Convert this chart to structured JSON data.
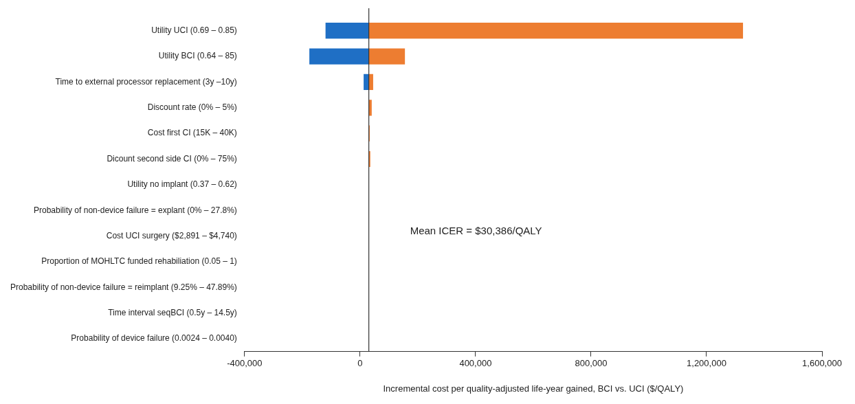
{
  "chart_data": {
    "type": "bar",
    "orientation": "horizontal",
    "xlabel": "Incremental cost per quality-adjusted life-year gained, BCI vs. UCI ($/QALY)",
    "categories": [
      "Utility UCI (0.69 – 0.85)",
      "Utility BCI (0.64 – 85)",
      "Time to external processor replacement (3y –10y)",
      "Discount rate (0% – 5%)",
      "Cost first CI (15K – 40K)",
      "Dicount second side CI (0% – 75%)",
      "Utility no implant (0.37 – 0.62)",
      "Probability of non-device failure = explant (0% – 27.8%)",
      "Cost UCI surgery ($2,891 – $4,740)",
      "Proportion of MOHLTC funded rehabiliation (0.05 – 1)",
      "Probability of non-device failure = reimplant (9.25% – 47.89%)",
      "Time interval seqBCI (0.5y – 14.5y)",
      "Probability of device failure (0.0024 – 0.0040)"
    ],
    "series": [
      {
        "color": "#1f6fc5",
        "base": [
          30386,
          30386,
          30386,
          null,
          null,
          null,
          null,
          null,
          null,
          null,
          null,
          null,
          null
        ],
        "values": [
          -150000,
          -206000,
          -18000,
          null,
          null,
          null,
          null,
          null,
          null,
          null,
          null,
          null,
          null
        ]
      },
      {
        "color": "#ed7d31",
        "base": [
          30386,
          30386,
          30386,
          30386,
          30386,
          30386,
          null,
          null,
          null,
          null,
          null,
          null,
          null
        ],
        "values": [
          1296000,
          125000,
          15000,
          10000,
          3000,
          5000,
          null,
          null,
          null,
          null,
          null,
          null,
          null
        ]
      }
    ],
    "xlim": [
      -400000,
      1600000
    ],
    "xticks": [
      {
        "value": -400000,
        "label": "-400,000"
      },
      0,
      {
        "value": 400000,
        "label": "400,000"
      },
      {
        "value": 800000,
        "label": "800,000"
      },
      {
        "value": 1200000,
        "label": "1,200,000"
      },
      {
        "value": 1600000,
        "label": "1,600,000"
      }
    ],
    "ref_lines": [
      {
        "axis": "x",
        "value": 30386,
        "color": "#333333",
        "label": "Mean ICER = $30,386/QALY"
      }
    ],
    "grid": false,
    "legend": false
  }
}
